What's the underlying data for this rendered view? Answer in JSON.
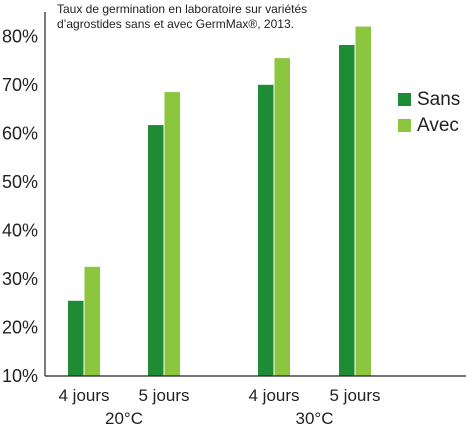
{
  "chart_data": {
    "type": "bar",
    "title_line1": "Taux de germination en laboratoire sur variétés",
    "title_line2": "d’agrostides sans et avec GermMax®, 2013.",
    "categories": [
      "4 jours",
      "5 jours",
      "4 jours",
      "5 jours"
    ],
    "groups": [
      "20°C",
      "30°C"
    ],
    "series": [
      {
        "name": "Sans",
        "color": "#1e8c34",
        "values": [
          25.5,
          61.7,
          70.0,
          78.2
        ]
      },
      {
        "name": "Avec",
        "color": "#8cc63f",
        "values": [
          32.5,
          68.5,
          75.5,
          82.0
        ]
      }
    ],
    "ylim": [
      10,
      85
    ],
    "yticks": [
      "10%",
      "20%",
      "30%",
      "40%",
      "50%",
      "60%",
      "70%",
      "80%"
    ],
    "ytick_values": [
      10,
      20,
      30,
      40,
      50,
      60,
      70,
      80
    ],
    "grid": false,
    "legend_position": "right"
  }
}
